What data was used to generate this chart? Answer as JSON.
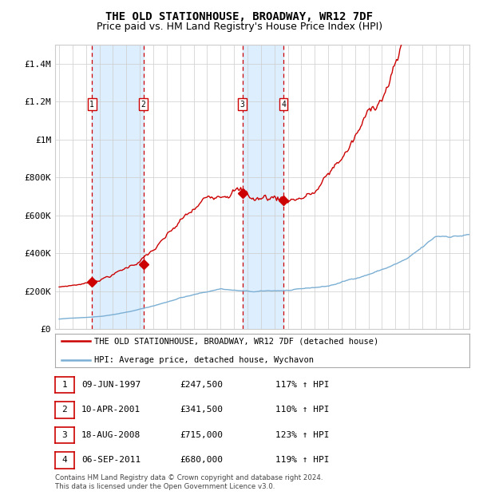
{
  "title": "THE OLD STATIONHOUSE, BROADWAY, WR12 7DF",
  "subtitle": "Price paid vs. HM Land Registry's House Price Index (HPI)",
  "title_fontsize": 10,
  "subtitle_fontsize": 9,
  "xlim": [
    1994.7,
    2025.5
  ],
  "ylim": [
    0,
    1500000
  ],
  "yticks": [
    0,
    200000,
    400000,
    600000,
    800000,
    1000000,
    1200000,
    1400000
  ],
  "ytick_labels": [
    "£0",
    "£200K",
    "£400K",
    "£600K",
    "£800K",
    "£1M",
    "£1.2M",
    "£1.4M"
  ],
  "transactions": [
    {
      "num": 1,
      "date": "09-JUN-1997",
      "year": 1997.44,
      "price": 247500,
      "pct": "117%",
      "dir": "↑"
    },
    {
      "num": 2,
      "date": "10-APR-2001",
      "year": 2001.27,
      "price": 341500,
      "pct": "110%",
      "dir": "↑"
    },
    {
      "num": 3,
      "date": "18-AUG-2008",
      "year": 2008.62,
      "price": 715000,
      "pct": "123%",
      "dir": "↑"
    },
    {
      "num": 4,
      "date": "06-SEP-2011",
      "year": 2011.68,
      "price": 680000,
      "pct": "119%",
      "dir": "↑"
    }
  ],
  "legend_house_label": "THE OLD STATIONHOUSE, BROADWAY, WR12 7DF (detached house)",
  "legend_hpi_label": "HPI: Average price, detached house, Wychavon",
  "footer_line1": "Contains HM Land Registry data © Crown copyright and database right 2024.",
  "footer_line2": "This data is licensed under the Open Government Licence v3.0.",
  "house_color": "#cc0000",
  "hpi_color": "#7bafd4",
  "shade_color": "#ddeeff",
  "grid_color": "#cccccc",
  "dashed_color": "#cc0000",
  "background_color": "#ffffff",
  "table_entries": [
    {
      "num": "1",
      "date": "09-JUN-1997",
      "price": "£247,500",
      "pct": "117% ↑ HPI"
    },
    {
      "num": "2",
      "date": "10-APR-2001",
      "price": "£341,500",
      "pct": "110% ↑ HPI"
    },
    {
      "num": "3",
      "date": "18-AUG-2008",
      "price": "£715,000",
      "pct": "123% ↑ HPI"
    },
    {
      "num": "4",
      "date": "06-SEP-2011",
      "price": "£680,000",
      "pct": "119% ↑ HPI"
    }
  ]
}
